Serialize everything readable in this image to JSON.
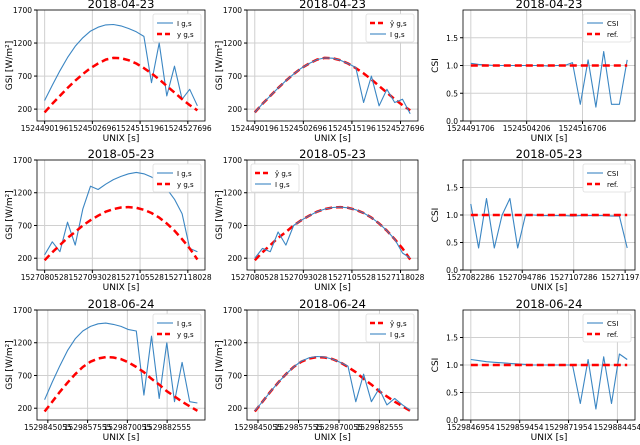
{
  "colors": {
    "measured": "#3b86c3",
    "reference": "#ff0000",
    "grid": "#d0d0d0"
  },
  "chart_data": [
    {
      "type": "line",
      "title": "2018-04-23",
      "xlabel": "UNIX [s]",
      "ylabel": "GSI [W/m²]",
      "ylim": [
        20,
        1700
      ],
      "yticks": [
        200,
        700,
        1200,
        1700
      ],
      "xticks": [
        1524490196,
        1524502696,
        1524515196,
        1524527696
      ],
      "x_start": 1524490196,
      "x_step": 2000,
      "legend": "top-right",
      "grid": true,
      "series": [
        {
          "name": "I g,s",
          "style": "solid",
          "color": "#3b86c3",
          "values": [
            330,
            560,
            780,
            980,
            1150,
            1280,
            1380,
            1440,
            1475,
            1480,
            1460,
            1420,
            1370,
            1300,
            600,
            1200,
            400,
            850,
            350,
            500,
            250
          ]
        },
        {
          "name": "y g,s",
          "style": "dashed",
          "color": "#ff0000",
          "values": [
            150,
            280,
            400,
            520,
            630,
            730,
            820,
            890,
            950,
            975,
            970,
            940,
            890,
            820,
            740,
            650,
            550,
            450,
            350,
            260,
            180
          ]
        }
      ]
    },
    {
      "type": "line",
      "title": "2018-04-23",
      "xlabel": "UNIX [s]",
      "ylabel": "GSI [W/m²]",
      "ylim": [
        20,
        1700
      ],
      "yticks": [
        200,
        700,
        1200,
        1700
      ],
      "xticks": [
        1524490196,
        1524502696,
        1524515196,
        1524527696
      ],
      "x_start": 1524490196,
      "x_step": 2000,
      "legend": "top-right",
      "grid": true,
      "series": [
        {
          "name": "ŷ g,s",
          "style": "dashed",
          "color": "#ff0000",
          "values": [
            150,
            280,
            400,
            520,
            630,
            730,
            820,
            890,
            950,
            975,
            970,
            940,
            890,
            820,
            740,
            650,
            550,
            450,
            350,
            260,
            180
          ]
        },
        {
          "name": "I g,s",
          "style": "solid",
          "color": "#3b86c3",
          "values": [
            150,
            280,
            400,
            520,
            630,
            730,
            820,
            890,
            950,
            975,
            970,
            940,
            890,
            830,
            300,
            700,
            250,
            500,
            300,
            350,
            130
          ]
        }
      ]
    },
    {
      "type": "line",
      "title": "2018-04-23",
      "xlabel": "UNIX [s]",
      "ylabel": "CSI",
      "ylim": [
        0,
        2
      ],
      "yticks": [
        0.0,
        0.5,
        1.0,
        1.5
      ],
      "xticks": [
        1524491706,
        1524504206,
        1524516706
      ],
      "x_start": 1524491706,
      "x_step": 1750,
      "legend": "top-right",
      "grid": true,
      "series": [
        {
          "name": "CSI",
          "style": "solid",
          "color": "#3b86c3",
          "values": [
            1.04,
            1.02,
            1.01,
            1.0,
            1.0,
            1.0,
            1.0,
            1.0,
            1.0,
            1.0,
            0.99,
            1.0,
            1.0,
            1.05,
            0.3,
            1.1,
            0.25,
            1.25,
            0.3,
            0.3,
            1.1
          ]
        },
        {
          "name": "ref.",
          "style": "dashed",
          "color": "#ff0000",
          "values": [
            1,
            1,
            1,
            1,
            1,
            1,
            1,
            1,
            1,
            1,
            1,
            1,
            1,
            1,
            1,
            1,
            1,
            1,
            1,
            1,
            1
          ]
        }
      ]
    },
    {
      "type": "line",
      "title": "2018-05-23",
      "xlabel": "UNIX [s]",
      "ylabel": "GSI [W/m²]",
      "ylim": [
        20,
        1700
      ],
      "yticks": [
        200,
        700,
        1200,
        1700
      ],
      "xticks": [
        1527080528,
        1527093028,
        1527105528,
        1527118028
      ],
      "x_start": 1527080528,
      "x_step": 2000,
      "legend": "top-right",
      "grid": true,
      "series": [
        {
          "name": "I g,s",
          "style": "solid",
          "color": "#3b86c3",
          "values": [
            250,
            450,
            300,
            750,
            400,
            950,
            1300,
            1250,
            1330,
            1400,
            1450,
            1490,
            1510,
            1490,
            1440,
            1370,
            1260,
            1100,
            880,
            350,
            300
          ]
        },
        {
          "name": "y g,s",
          "style": "dashed",
          "color": "#ff0000",
          "values": [
            170,
            290,
            400,
            510,
            600,
            700,
            780,
            850,
            910,
            950,
            975,
            980,
            970,
            940,
            890,
            820,
            730,
            620,
            490,
            350,
            180
          ]
        }
      ]
    },
    {
      "type": "line",
      "title": "2018-05-23",
      "xlabel": "UNIX [s]",
      "ylabel": "GSI [W/m²]",
      "ylim": [
        20,
        1700
      ],
      "yticks": [
        200,
        700,
        1200,
        1700
      ],
      "xticks": [
        1527080528,
        1527093028,
        1527105528,
        1527118028
      ],
      "x_start": 1527080528,
      "x_step": 2000,
      "legend": "top-left",
      "grid": true,
      "series": [
        {
          "name": "ŷ g,s",
          "style": "dashed",
          "color": "#ff0000",
          "values": [
            170,
            290,
            400,
            510,
            600,
            700,
            780,
            850,
            910,
            950,
            975,
            980,
            970,
            940,
            890,
            820,
            730,
            620,
            490,
            350,
            180
          ]
        },
        {
          "name": "I g,s",
          "style": "solid",
          "color": "#3b86c3",
          "values": [
            200,
            350,
            300,
            600,
            400,
            700,
            780,
            850,
            910,
            950,
            975,
            980,
            970,
            940,
            890,
            820,
            730,
            620,
            490,
            280,
            200
          ]
        }
      ]
    },
    {
      "type": "line",
      "title": "2018-05-23",
      "xlabel": "UNIX [s]",
      "ylabel": "CSI",
      "ylim": [
        0,
        2
      ],
      "yticks": [
        0.0,
        0.5,
        1.0,
        1.5
      ],
      "xticks": [
        1527082286,
        1527094786,
        1527107286,
        1527119786
      ],
      "x_start": 1527082286,
      "x_step": 1900,
      "legend": "top-right",
      "grid": true,
      "series": [
        {
          "name": "CSI",
          "style": "solid",
          "color": "#3b86c3",
          "values": [
            1.2,
            0.4,
            1.3,
            0.4,
            1.0,
            1.3,
            0.4,
            1.0,
            1.0,
            0.99,
            0.99,
            0.99,
            0.99,
            0.98,
            0.99,
            0.99,
            0.99,
            0.99,
            0.98,
            0.98,
            0.4
          ]
        },
        {
          "name": "ref.",
          "style": "dashed",
          "color": "#ff0000",
          "values": [
            1,
            1,
            1,
            1,
            1,
            1,
            1,
            1,
            1,
            1,
            1,
            1,
            1,
            1,
            1,
            1,
            1,
            1,
            1,
            1,
            1
          ]
        }
      ]
    },
    {
      "type": "line",
      "title": "2018-06-24",
      "xlabel": "UNIX [s]",
      "ylabel": "GSI [W/m²]",
      "ylim": [
        20,
        1700
      ],
      "yticks": [
        200,
        700,
        1200,
        1700
      ],
      "xticks": [
        1529845055,
        1529857555,
        1529870055,
        1529882555
      ],
      "x_start": 1529844055,
      "x_step": 2400,
      "legend": "top-right",
      "grid": true,
      "series": [
        {
          "name": "I g,s",
          "style": "solid",
          "color": "#3b86c3",
          "values": [
            330,
            600,
            850,
            1080,
            1260,
            1380,
            1450,
            1490,
            1500,
            1480,
            1450,
            1400,
            1380,
            400,
            1300,
            350,
            1200,
            300,
            900,
            300,
            280
          ]
        },
        {
          "name": "y g,s",
          "style": "dashed",
          "color": "#ff0000",
          "values": [
            150,
            300,
            450,
            590,
            720,
            830,
            910,
            960,
            980,
            975,
            950,
            900,
            830,
            750,
            650,
            560,
            460,
            380,
            300,
            230,
            160
          ]
        }
      ]
    },
    {
      "type": "line",
      "title": "2018-06-24",
      "xlabel": "UNIX [s]",
      "ylabel": "GSI [W/m²]",
      "ylim": [
        20,
        1700
      ],
      "yticks": [
        200,
        700,
        1200,
        1700
      ],
      "xticks": [
        1529845055,
        1529857555,
        1529870055,
        1529882555
      ],
      "x_start": 1529844055,
      "x_step": 2400,
      "legend": "top-right",
      "grid": true,
      "series": [
        {
          "name": "ŷ g,s",
          "style": "dashed",
          "color": "#ff0000",
          "values": [
            150,
            300,
            450,
            590,
            720,
            830,
            910,
            960,
            980,
            975,
            950,
            900,
            830,
            750,
            650,
            560,
            460,
            380,
            300,
            230,
            160
          ]
        },
        {
          "name": "I g,s",
          "style": "solid",
          "color": "#3b86c3",
          "values": [
            160,
            300,
            450,
            590,
            720,
            830,
            920,
            970,
            990,
            980,
            950,
            900,
            840,
            300,
            720,
            300,
            500,
            250,
            350,
            250,
            170
          ]
        }
      ]
    },
    {
      "type": "line",
      "title": "2018-06-24",
      "xlabel": "UNIX [s]",
      "ylabel": "CSI",
      "ylim": [
        0,
        2
      ],
      "yticks": [
        0.0,
        0.5,
        1.0,
        1.5
      ],
      "xticks": [
        1529846954,
        1529859454,
        1529871954,
        1529884454
      ],
      "x_start": 1529846954,
      "x_step": 2000,
      "legend": "top-right",
      "grid": true,
      "series": [
        {
          "name": "CSI",
          "style": "solid",
          "color": "#3b86c3",
          "values": [
            1.1,
            1.08,
            1.06,
            1.05,
            1.04,
            1.03,
            1.02,
            1.01,
            1.0,
            1.0,
            1.0,
            1.0,
            1.0,
            1.0,
            0.3,
            1.1,
            0.2,
            1.15,
            0.3,
            1.2,
            1.1
          ]
        },
        {
          "name": "ref.",
          "style": "dashed",
          "color": "#ff0000",
          "values": [
            1,
            1,
            1,
            1,
            1,
            1,
            1,
            1,
            1,
            1,
            1,
            1,
            1,
            1,
            1,
            1,
            1,
            1,
            1,
            1,
            1
          ]
        }
      ]
    }
  ]
}
